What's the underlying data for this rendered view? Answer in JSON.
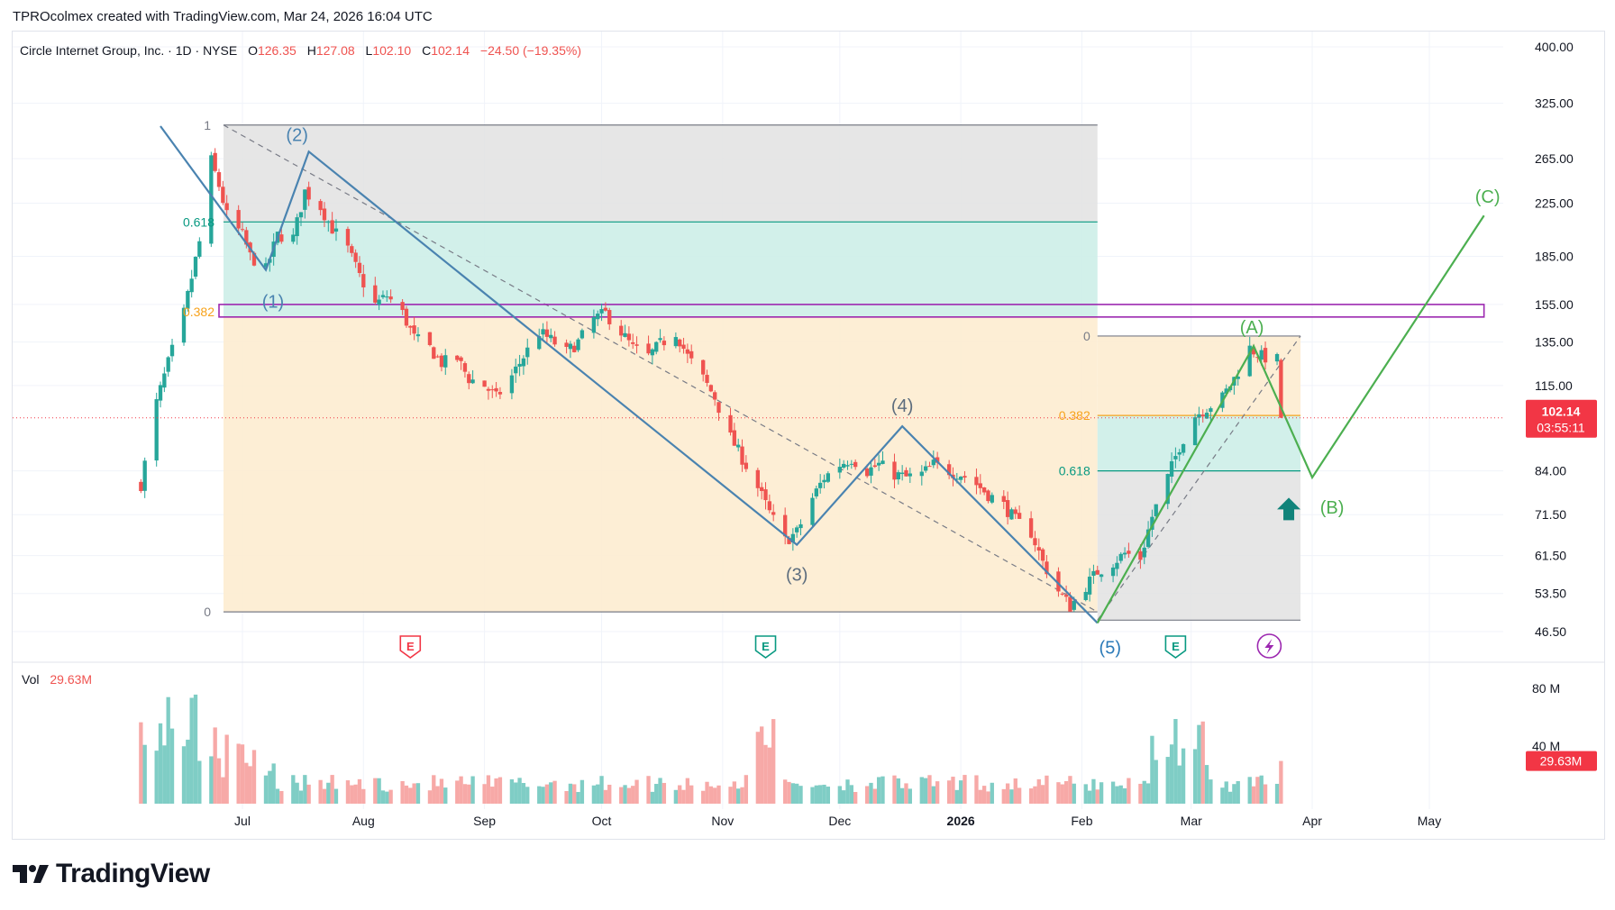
{
  "header": {
    "credit": "TPROcolmex created with TradingView.com, Mar 24, 2026 16:04 UTC",
    "symbol": "Circle Internet Group, Inc. · 1D · NYSE",
    "o_label": "O",
    "o_value": "126.35",
    "h_label": "H",
    "h_value": "127.08",
    "l_label": "L",
    "l_value": "102.10",
    "c_label": "C",
    "c_value": "102.14",
    "change": "−24.50 (−19.35%)"
  },
  "price_axis": {
    "ticks": [
      "400.00",
      "325.00",
      "265.00",
      "225.00",
      "185.00",
      "155.00",
      "135.00",
      "115.00",
      "84.00",
      "71.50",
      "61.50",
      "53.50",
      "46.50"
    ],
    "last_price": "102.14",
    "countdown": "03:55:11"
  },
  "volume_panel": {
    "label": "Vol",
    "value": "29.63M",
    "ticks": [
      "80 M",
      "40 M"
    ],
    "badge": "29.63M"
  },
  "time_axis": {
    "labels": [
      "Jul",
      "Aug",
      "Sep",
      "Oct",
      "Nov",
      "Dec",
      "2026",
      "Feb",
      "Mar",
      "Apr",
      "May"
    ]
  },
  "fib_1": {
    "level_1": "1",
    "level_618": "0.618",
    "level_382": "0.382",
    "level_0": "0"
  },
  "fib_2": {
    "level_0": "0",
    "level_382": "0.382",
    "level_618": "0.618"
  },
  "waves": {
    "w1": "(1)",
    "w2": "(2)",
    "w3": "(3)",
    "w4": "(4)",
    "w5": "(5)",
    "wA": "(A)",
    "wB": "(B)",
    "wC": "(C)"
  },
  "events": {
    "earnings": "E",
    "dividend_icon": "lightning-icon"
  },
  "colors": {
    "up": "#26a69a",
    "down": "#ef5350",
    "up_vol": "#7fcdc5",
    "down_vol": "#f7a9a7",
    "wave_blue": "#4a83b0",
    "wave_green": "#4caf50",
    "fib_gray": "#e2e2e2",
    "fib_teal": "#cdeee8",
    "fib_orange": "#fdecd0",
    "zone_purple": "#9c27b0",
    "last_price_badge": "#f23645"
  },
  "chart_data": {
    "type": "candlestick",
    "title": "Circle Internet Group, Inc. · 1D · NYSE",
    "y_scale": "log",
    "ylim": [
      46.5,
      400
    ],
    "x_range": [
      "2025-06-05",
      "2026-05-15"
    ],
    "ohlc_last": {
      "open": 126.35,
      "high": 127.08,
      "low": 102.1,
      "close": 102.14,
      "change": -24.5,
      "change_pct": -19.35
    },
    "price_path": [
      [
        "2025-06-05",
        80
      ],
      [
        "2025-06-09",
        108
      ],
      [
        "2025-06-12",
        125
      ],
      [
        "2025-06-16",
        150
      ],
      [
        "2025-06-20",
        195
      ],
      [
        "2025-06-23",
        263
      ],
      [
        "2025-06-25",
        240
      ],
      [
        "2025-06-27",
        215
      ],
      [
        "2025-07-01",
        200
      ],
      [
        "2025-07-03",
        185
      ],
      [
        "2025-07-07",
        176
      ],
      [
        "2025-07-10",
        200
      ],
      [
        "2025-07-14",
        198
      ],
      [
        "2025-07-17",
        235
      ],
      [
        "2025-07-21",
        222
      ],
      [
        "2025-07-24",
        205
      ],
      [
        "2025-07-28",
        190
      ],
      [
        "2025-07-31",
        172
      ],
      [
        "2025-08-04",
        155
      ],
      [
        "2025-08-07",
        160
      ],
      [
        "2025-08-11",
        150
      ],
      [
        "2025-08-14",
        137
      ],
      [
        "2025-08-18",
        132
      ],
      [
        "2025-08-21",
        125
      ],
      [
        "2025-08-25",
        127
      ],
      [
        "2025-08-28",
        118
      ],
      [
        "2025-09-01",
        115
      ],
      [
        "2025-09-04",
        110
      ],
      [
        "2025-09-08",
        119
      ],
      [
        "2025-09-11",
        128
      ],
      [
        "2025-09-15",
        140
      ],
      [
        "2025-09-18",
        136
      ],
      [
        "2025-09-22",
        130
      ],
      [
        "2025-09-25",
        135
      ],
      [
        "2025-09-29",
        147
      ],
      [
        "2025-10-02",
        150
      ],
      [
        "2025-10-06",
        140
      ],
      [
        "2025-10-09",
        132
      ],
      [
        "2025-10-13",
        128
      ],
      [
        "2025-10-16",
        134
      ],
      [
        "2025-10-20",
        140
      ],
      [
        "2025-10-23",
        128
      ],
      [
        "2025-10-27",
        118
      ],
      [
        "2025-10-30",
        110
      ],
      [
        "2025-11-03",
        95
      ],
      [
        "2025-11-06",
        88
      ],
      [
        "2025-11-10",
        79
      ],
      [
        "2025-11-13",
        72
      ],
      [
        "2025-11-17",
        65
      ],
      [
        "2025-11-20",
        67
      ],
      [
        "2025-11-24",
        76
      ],
      [
        "2025-11-27",
        82
      ],
      [
        "2025-12-01",
        86
      ],
      [
        "2025-12-04",
        88
      ],
      [
        "2025-12-08",
        84
      ],
      [
        "2025-12-11",
        86
      ],
      [
        "2025-12-15",
        83
      ],
      [
        "2025-12-18",
        82
      ],
      [
        "2025-12-22",
        83
      ],
      [
        "2025-12-25",
        86
      ],
      [
        "2025-12-29",
        84
      ],
      [
        "2026-01-01",
        83
      ],
      [
        "2026-01-05",
        80
      ],
      [
        "2026-01-08",
        77
      ],
      [
        "2026-01-12",
        74
      ],
      [
        "2026-01-15",
        70
      ],
      [
        "2026-01-19",
        67
      ],
      [
        "2026-01-22",
        60
      ],
      [
        "2026-01-26",
        54
      ],
      [
        "2026-01-29",
        51
      ],
      [
        "2026-02-02",
        55
      ],
      [
        "2026-02-05",
        58
      ],
      [
        "2026-02-09",
        60
      ],
      [
        "2026-02-12",
        62
      ],
      [
        "2026-02-16",
        61
      ],
      [
        "2026-02-19",
        71
      ],
      [
        "2026-02-23",
        82
      ],
      [
        "2026-02-26",
        92
      ],
      [
        "2026-03-02",
        103
      ],
      [
        "2026-03-05",
        106
      ],
      [
        "2026-03-09",
        110
      ],
      [
        "2026-03-12",
        118
      ],
      [
        "2026-03-16",
        132
      ],
      [
        "2026-03-19",
        128
      ],
      [
        "2026-03-23",
        126.35
      ],
      [
        "2026-03-24",
        102.14
      ]
    ],
    "elliott_waves": [
      {
        "label": "(1)",
        "date": "2025-07-07",
        "price": 176
      },
      {
        "label": "(2)",
        "date": "2025-07-18",
        "price": 272
      },
      {
        "label": "(3)",
        "date": "2025-11-20",
        "price": 64
      },
      {
        "label": "(4)",
        "date": "2025-12-17",
        "price": 99
      },
      {
        "label": "(5)",
        "date": "2026-02-05",
        "price": 48
      },
      {
        "label": "(A)",
        "date": "2026-03-17",
        "price": 133
      },
      {
        "label": "(B)",
        "date": "2026-04-01",
        "price": 82
      },
      {
        "label": "(C)",
        "date": "2026-05-15",
        "price": 215
      }
    ],
    "fibonacci_retracement_1": {
      "levels": [
        1,
        0.618,
        0.382,
        0
      ],
      "prices": [
        300,
        210,
        148,
        50
      ]
    },
    "fibonacci_retracement_2": {
      "levels": [
        0,
        0.382,
        0.618
      ],
      "prices": [
        138,
        103,
        84
      ]
    },
    "resistance_zone": [
      148,
      155
    ],
    "volume": {
      "last": "29.63M",
      "max_approx": 90,
      "unit": "M"
    }
  }
}
